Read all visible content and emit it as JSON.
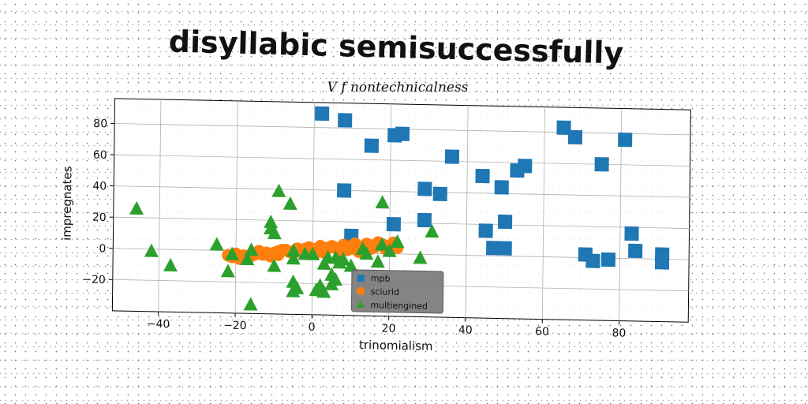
{
  "chart_data": {
    "type": "scatter",
    "title": "disyllabic semisuccessfully",
    "subtitle": "V f nontechnicalness",
    "xlabel": "trinomialism",
    "ylabel": "impregnates",
    "xlim": [
      -52,
      98
    ],
    "ylim": [
      -40,
      96
    ],
    "xticks": [
      -40,
      -20,
      0,
      20,
      40,
      60,
      80
    ],
    "yticks": [
      -20,
      0,
      20,
      40,
      60,
      80
    ],
    "xtick_labels": [
      "−40",
      "−20",
      "0",
      "20",
      "40",
      "60",
      "80"
    ],
    "ytick_labels": [
      "−20",
      "0",
      "20",
      "40",
      "60",
      "80"
    ],
    "grid": true,
    "legend_position": "bottom-center",
    "series": [
      {
        "name": "mpb",
        "marker": "square",
        "color": "#1f77b4",
        "points": [
          [
            2,
            89
          ],
          [
            8,
            85
          ],
          [
            15,
            69
          ],
          [
            21,
            76
          ],
          [
            23,
            77
          ],
          [
            36,
            63
          ],
          [
            8,
            40
          ],
          [
            10,
            11
          ],
          [
            21,
            19
          ],
          [
            29,
            42
          ],
          [
            33,
            39
          ],
          [
            44,
            51
          ],
          [
            49,
            44
          ],
          [
            53,
            55
          ],
          [
            55,
            58
          ],
          [
            29,
            22
          ],
          [
            45,
            16
          ],
          [
            47,
            5
          ],
          [
            50,
            5
          ],
          [
            50,
            22
          ],
          [
            65,
            83
          ],
          [
            68,
            77
          ],
          [
            75,
            60
          ],
          [
            81,
            76
          ],
          [
            83,
            16
          ],
          [
            84,
            5
          ],
          [
            71,
            2
          ],
          [
            73,
            -2
          ],
          [
            77,
            -1
          ],
          [
            91,
            -2
          ],
          [
            91,
            3
          ]
        ]
      },
      {
        "name": "sciurid",
        "marker": "circle",
        "color": "#ff7f0e",
        "points": [
          [
            -21,
            -4
          ],
          [
            -18,
            -3
          ],
          [
            -15,
            -2
          ],
          [
            -12,
            -1
          ],
          [
            -9,
            0
          ],
          [
            -6,
            0
          ],
          [
            -3,
            1
          ],
          [
            0,
            2
          ],
          [
            3,
            2
          ],
          [
            6,
            3
          ],
          [
            9,
            4
          ],
          [
            12,
            4
          ],
          [
            15,
            5
          ],
          [
            18,
            6
          ],
          [
            21,
            7
          ],
          [
            -19,
            -5
          ],
          [
            -16,
            -3
          ],
          [
            -13,
            -2
          ],
          [
            -10,
            -1
          ],
          [
            -7,
            1
          ],
          [
            -4,
            2
          ],
          [
            -1,
            3
          ],
          [
            2,
            4
          ],
          [
            5,
            4
          ],
          [
            8,
            5
          ],
          [
            11,
            6
          ],
          [
            14,
            6
          ],
          [
            17,
            7
          ],
          [
            -20,
            -2
          ],
          [
            -14,
            0
          ],
          [
            -8,
            1
          ],
          [
            -2,
            2
          ],
          [
            4,
            3
          ],
          [
            10,
            3
          ],
          [
            16,
            4
          ],
          [
            20,
            5
          ],
          [
            -17,
            -4
          ],
          [
            -11,
            -3
          ],
          [
            -5,
            -1
          ],
          [
            1,
            0
          ],
          [
            7,
            1
          ],
          [
            13,
            2
          ],
          [
            19,
            3
          ],
          [
            22,
            4
          ],
          [
            -22,
            -3
          ],
          [
            -9,
            -2
          ],
          [
            3,
            0
          ],
          [
            9,
            2
          ],
          [
            15,
            3
          ],
          [
            12,
            1
          ]
        ]
      },
      {
        "name": "multiengined",
        "marker": "triangle",
        "color": "#2ca02c",
        "points": [
          [
            -46,
            26
          ],
          [
            -42,
            -1
          ],
          [
            -37,
            -10
          ],
          [
            -25,
            4
          ],
          [
            -22,
            -13
          ],
          [
            -21,
            -2
          ],
          [
            -17,
            -5
          ],
          [
            -16,
            -34
          ],
          [
            -16,
            1
          ],
          [
            -11,
            19
          ],
          [
            -11,
            15
          ],
          [
            -10,
            12
          ],
          [
            -10,
            -9
          ],
          [
            -9,
            39
          ],
          [
            -6,
            31
          ],
          [
            -5,
            1
          ],
          [
            -5,
            -4
          ],
          [
            -5,
            -19
          ],
          [
            -5,
            -25
          ],
          [
            -4,
            -23
          ],
          [
            -2,
            -1
          ],
          [
            0,
            -1
          ],
          [
            1,
            -24
          ],
          [
            2,
            -21
          ],
          [
            3,
            -25
          ],
          [
            3,
            -7
          ],
          [
            4,
            -3
          ],
          [
            5,
            -20
          ],
          [
            5,
            -14
          ],
          [
            6,
            -17
          ],
          [
            6,
            -3
          ],
          [
            7,
            -6
          ],
          [
            10,
            -8
          ],
          [
            13,
            3
          ],
          [
            14,
            0
          ],
          [
            17,
            -5
          ],
          [
            18,
            33
          ],
          [
            18,
            6
          ],
          [
            20,
            2
          ],
          [
            22,
            8
          ],
          [
            28,
            -2
          ],
          [
            31,
            15
          ],
          [
            8,
            -4
          ]
        ]
      }
    ]
  }
}
